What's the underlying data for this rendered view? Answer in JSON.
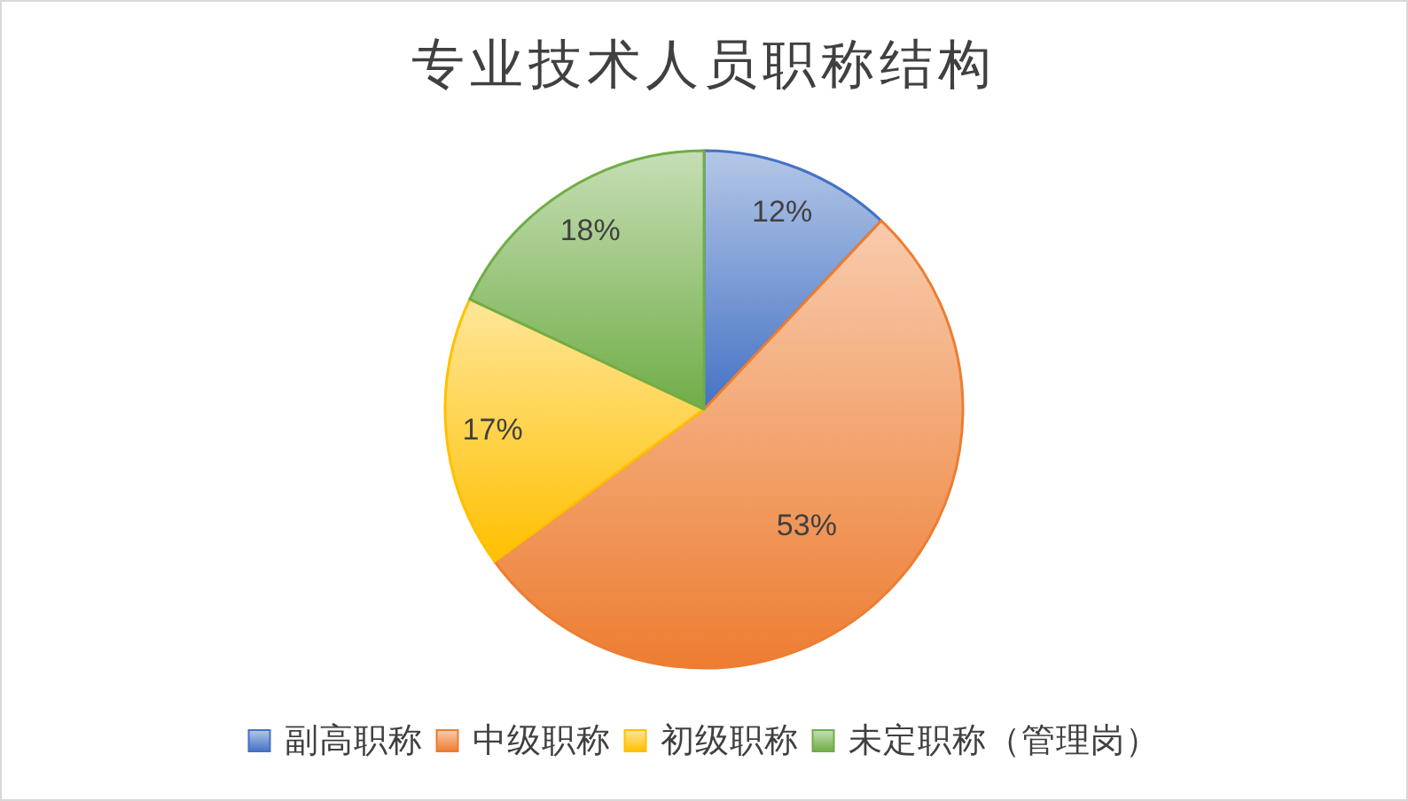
{
  "chart_data": {
    "type": "pie",
    "title": "专业技术人员职称结构",
    "categories": [
      "副高职称",
      "中级职称",
      "初级职称",
      "未定职称（管理岗）"
    ],
    "values": [
      12,
      53,
      17,
      18
    ],
    "value_labels": [
      "12%",
      "53%",
      "17%",
      "18%"
    ],
    "colors": [
      "#4472c4",
      "#ed7d31",
      "#ffc000",
      "#70ad47"
    ],
    "legend": "bottom"
  }
}
